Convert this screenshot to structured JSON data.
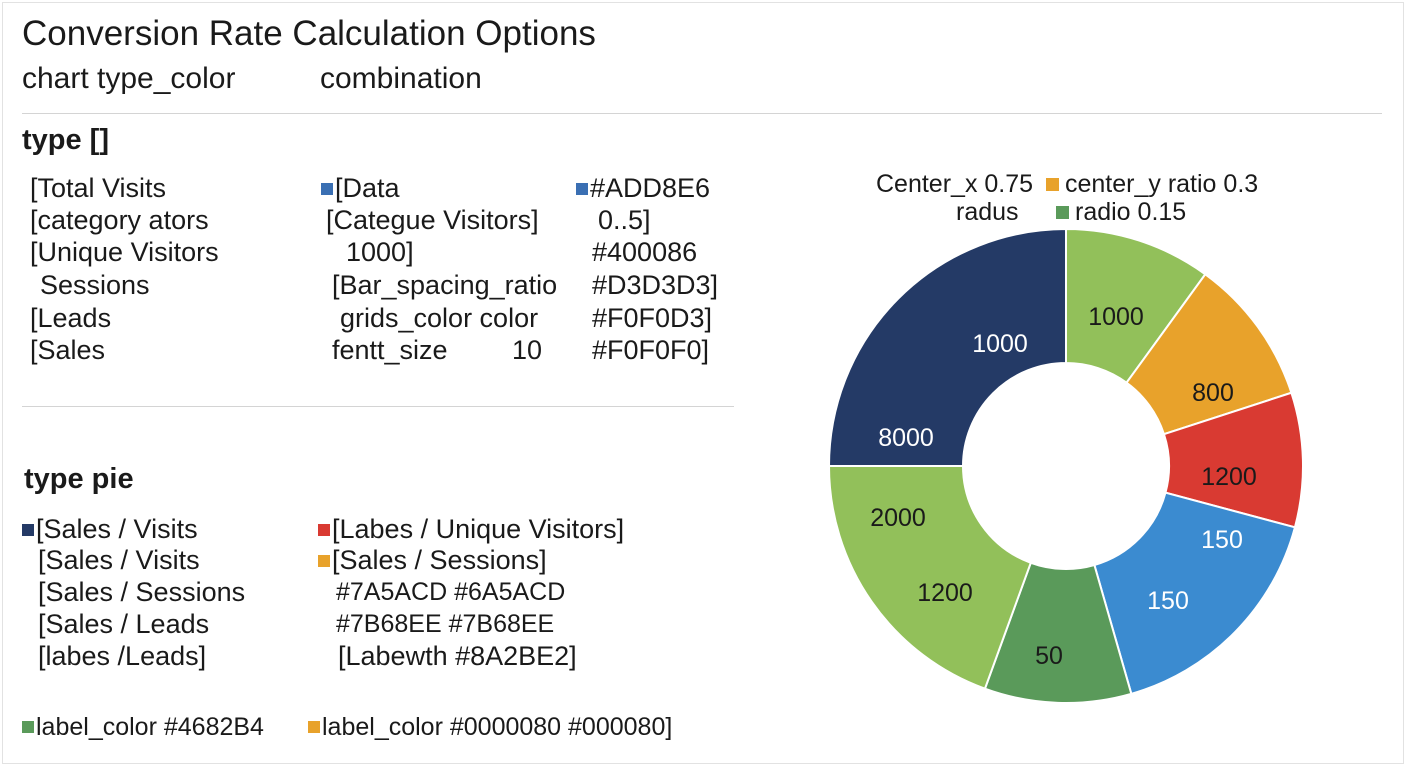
{
  "header": {
    "title": "Conversion Rate Calculation Options",
    "subtitle_left": "chart type_color",
    "subtitle_right": "combination"
  },
  "section1": {
    "heading": "type []",
    "col1": [
      "[Total Visits",
      "[category ators",
      "[Unique Visitors",
      "Sessions",
      "[Leads",
      "[Sales"
    ],
    "col2": [
      "[Data",
      "[Categue Visitors]",
      "1000]",
      "[Bar_spacing_ratio",
      "grids_color color",
      "fentt_size",
      "10"
    ],
    "col3": [
      "#ADD8E6",
      "0..5]",
      "#400086",
      "#D3D3D3]",
      "#F0F0D3]",
      "#F0F0F0]"
    ]
  },
  "section2": {
    "heading": "type pie",
    "col1": [
      "[Sales / Visits",
      "[Sales / Visits",
      "[Sales / Sessions",
      "[Sales / Leads",
      "[labes /Leads]"
    ],
    "col2": [
      "[Labes / Unique Visitors]",
      "[Sales / Sessions]",
      "#7A5ACD #6A5ACD",
      "#7B68EE #7B68EE",
      "[Labewth #8A2BE2]"
    ],
    "footer": [
      "label_color  #4682B4",
      "label_color  #0000080  #000080]"
    ]
  },
  "colors": {
    "navy": "#243a66",
    "green_light": "#92c05a",
    "orange": "#e8a22b",
    "red": "#d93a32",
    "blue": "#3b8bd0",
    "green_dark": "#5a9a5a",
    "square_blue": "#3a6fb3",
    "divider": "#d4d4d4"
  },
  "chart_legend": {
    "line1_a": "Center_x 0.75",
    "line1_b": "center_y ratio  0.3",
    "line2_a": "radus",
    "line2_b": "radio   0.15"
  },
  "chart_data": {
    "type": "pie",
    "style": "donut",
    "slices": [
      {
        "label": "1000",
        "color": "#92c05a"
      },
      {
        "label": "800",
        "color": "#e8a22b"
      },
      {
        "label": "1200",
        "color": "#d93a32"
      },
      {
        "label": "150",
        "color": "#3b8bd0"
      },
      {
        "label": "150",
        "color": "#3b8bd0"
      },
      {
        "label": "50",
        "color": "#5a9a5a"
      },
      {
        "label": "1200",
        "color": "#92c05a"
      },
      {
        "label": "2000",
        "color": "#92c05a"
      },
      {
        "label": "8000",
        "color": "#243a66"
      },
      {
        "label": "1000",
        "color": "#243a66"
      }
    ]
  }
}
